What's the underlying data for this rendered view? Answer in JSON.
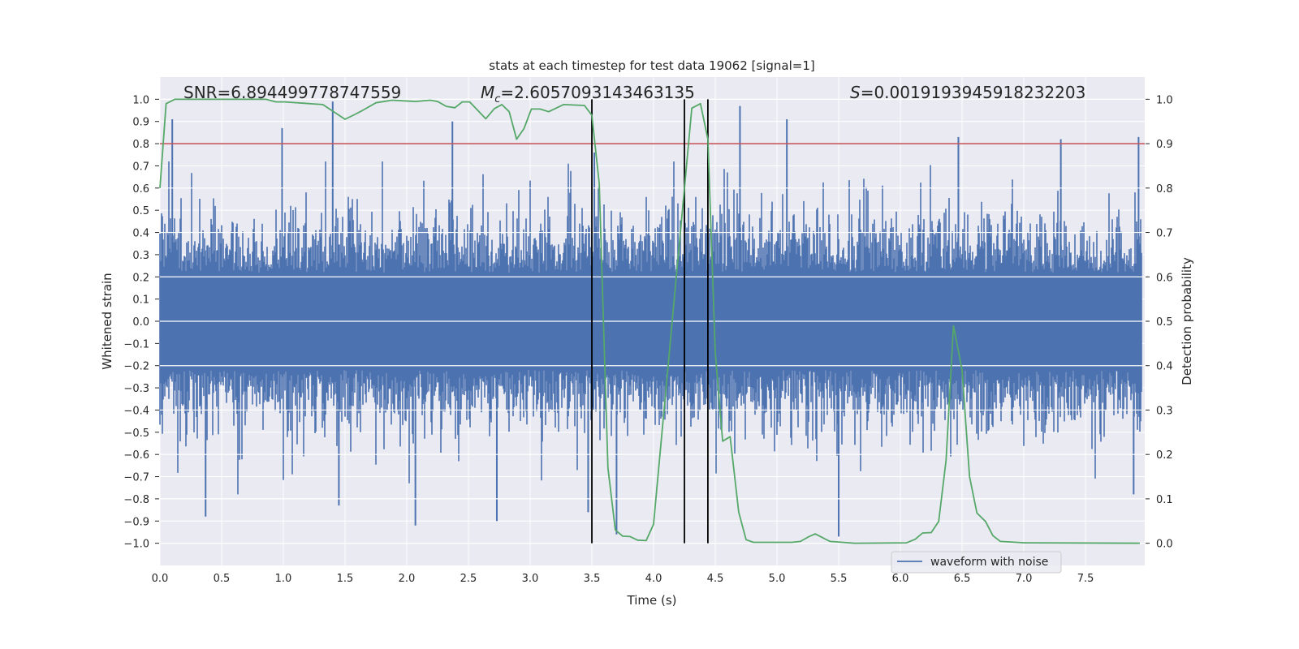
{
  "chart_data": {
    "type": "line",
    "title": "stats at each timestep for test data 19062 [signal=1]",
    "xlabel": "Time (s)",
    "ylabel_left": "Whitened strain",
    "ylabel_right": "Detection probability",
    "xlim": [
      0,
      7.98
    ],
    "ylim_left": [
      -1.1,
      1.1
    ],
    "ylim_right": [
      -0.05,
      1.05
    ],
    "grid": true,
    "x_ticks": [
      "0.0",
      "0.5",
      "1.0",
      "1.5",
      "2.0",
      "2.5",
      "3.0",
      "3.5",
      "4.0",
      "4.5",
      "5.0",
      "5.5",
      "6.0",
      "6.5",
      "7.0",
      "7.5"
    ],
    "y_left_ticks": [
      "1.0",
      "0.9",
      "0.8",
      "0.7",
      "0.6",
      "0.5",
      "0.4",
      "0.3",
      "0.2",
      "0.1",
      "0.0",
      "−0.1",
      "−0.2",
      "−0.3",
      "−0.4",
      "−0.5",
      "−0.6",
      "−0.7",
      "−0.8",
      "−0.9",
      "−1.0"
    ],
    "y_right_ticks": [
      "1.0",
      "0.9",
      "0.8",
      "0.7",
      "0.6",
      "0.5",
      "0.4",
      "0.3",
      "0.2",
      "0.1",
      "0.0"
    ],
    "annotations": {
      "snr": "SNR=6.894499778747559",
      "mc_symbol": "M",
      "mc_sub": "c",
      "mc_value": "=2.6057093143463135",
      "s_symbol": "S",
      "s_value": "=0.0019193945918232203"
    },
    "threshold": {
      "value": 0.8,
      "axis": "left",
      "color": "#c44e52"
    },
    "vertical_markers": {
      "x": [
        3.5,
        4.25,
        4.44
      ],
      "y_range_right": [
        0,
        1
      ],
      "color": "#000000"
    },
    "legend": {
      "placement": "lower-right",
      "entries": [
        "waveform with noise"
      ]
    },
    "series": [
      {
        "name": "waveform with noise",
        "axis": "left",
        "color": "#4c72b0",
        "kind": "dense noisy strain, core band ±0.2, notable peaks listed",
        "notable_peaks": [
          [
            0.1,
            0.91
          ],
          [
            0.37,
            -0.88
          ],
          [
            0.99,
            0.87
          ],
          [
            1.4,
            0.99
          ],
          [
            1.45,
            -0.83
          ],
          [
            2.07,
            -0.92
          ],
          [
            2.37,
            0.9
          ],
          [
            2.73,
            -0.9
          ],
          [
            3.47,
            -0.86
          ],
          [
            3.52,
            0.76
          ],
          [
            3.7,
            -0.96
          ],
          [
            4.7,
            0.97
          ],
          [
            5.08,
            0.91
          ],
          [
            5.5,
            -0.97
          ],
          [
            6.47,
            0.83
          ],
          [
            7.3,
            0.82
          ],
          [
            7.93,
            0.83
          ],
          [
            7.89,
            -0.78
          ]
        ]
      },
      {
        "name": "detection probability",
        "axis": "right",
        "color": "#55a868",
        "points": [
          [
            0,
            0.8
          ],
          [
            0.05,
            0.99
          ],
          [
            0.12,
            1.0
          ],
          [
            0.86,
            1.0
          ],
          [
            0.94,
            0.994
          ],
          [
            1.01,
            0.994
          ],
          [
            1.32,
            0.988
          ],
          [
            1.5,
            0.955
          ],
          [
            1.58,
            0.966
          ],
          [
            1.63,
            0.973
          ],
          [
            1.75,
            0.992
          ],
          [
            1.88,
            0.998
          ],
          [
            2.07,
            0.995
          ],
          [
            2.19,
            0.998
          ],
          [
            2.25,
            0.995
          ],
          [
            2.32,
            0.984
          ],
          [
            2.39,
            0.981
          ],
          [
            2.45,
            0.994
          ],
          [
            2.51,
            0.994
          ],
          [
            2.64,
            0.956
          ],
          [
            2.71,
            0.979
          ],
          [
            2.77,
            0.988
          ],
          [
            2.83,
            0.972
          ],
          [
            2.89,
            0.91
          ],
          [
            2.95,
            0.934
          ],
          [
            3.01,
            0.978
          ],
          [
            3.08,
            0.978
          ],
          [
            3.15,
            0.972
          ],
          [
            3.27,
            0.988
          ],
          [
            3.44,
            0.986
          ],
          [
            3.5,
            0.964
          ],
          [
            3.56,
            0.81
          ],
          [
            3.63,
            0.17
          ],
          [
            3.69,
            0.03
          ],
          [
            3.75,
            0.016
          ],
          [
            3.81,
            0.015
          ],
          [
            3.87,
            0.007
          ],
          [
            3.94,
            0.006
          ],
          [
            4.0,
            0.043
          ],
          [
            4.31,
            0.98
          ],
          [
            4.38,
            0.99
          ],
          [
            4.44,
            0.91
          ],
          [
            4.5,
            0.43
          ],
          [
            4.56,
            0.23
          ],
          [
            4.62,
            0.24
          ],
          [
            4.69,
            0.07
          ],
          [
            4.75,
            0.008
          ],
          [
            4.81,
            0.002
          ],
          [
            5.12,
            0.002
          ],
          [
            5.19,
            0.004
          ],
          [
            5.26,
            0.015
          ],
          [
            5.31,
            0.021
          ],
          [
            5.38,
            0.011
          ],
          [
            5.43,
            0.004
          ],
          [
            5.63,
            0.0
          ],
          [
            6.05,
            0.001
          ],
          [
            6.12,
            0.009
          ],
          [
            6.18,
            0.023
          ],
          [
            6.25,
            0.024
          ],
          [
            6.31,
            0.049
          ],
          [
            6.37,
            0.187
          ],
          [
            6.43,
            0.49
          ],
          [
            6.5,
            0.39
          ],
          [
            6.56,
            0.15
          ],
          [
            6.62,
            0.068
          ],
          [
            6.69,
            0.049
          ],
          [
            6.75,
            0.017
          ],
          [
            6.81,
            0.004
          ],
          [
            7.01,
            0.001
          ],
          [
            7.94,
            0.0
          ]
        ]
      }
    ],
    "colors": {
      "background": "#eaeaf2",
      "grid": "#ffffff"
    }
  }
}
